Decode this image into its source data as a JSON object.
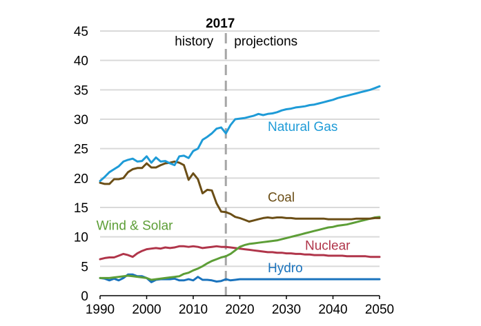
{
  "chart_data": {
    "type": "line",
    "title": "",
    "xlabel": "",
    "ylabel": "",
    "xlim": [
      1990,
      2050
    ],
    "ylim": [
      0,
      45
    ],
    "grid": true,
    "legend": "inline labels",
    "x_ticks": [
      1990,
      2000,
      2010,
      2020,
      2030,
      2040,
      2050
    ],
    "x_tick_labels": [
      "1990",
      "2000",
      "2010",
      "2020",
      "2030",
      "2040",
      "2050"
    ],
    "y_ticks": [
      0,
      5,
      10,
      15,
      20,
      25,
      30,
      35,
      40,
      45
    ],
    "y_tick_labels": [
      "0",
      "5",
      "10",
      "15",
      "20",
      "25",
      "30",
      "35",
      "40",
      "45"
    ],
    "divider": {
      "year": 2017,
      "label": "2017",
      "left_label": "history",
      "right_label": "projections",
      "color": "#a6a6a6"
    },
    "x": [
      1990,
      1991,
      1992,
      1993,
      1994,
      1995,
      1996,
      1997,
      1998,
      1999,
      2000,
      2001,
      2002,
      2003,
      2004,
      2005,
      2006,
      2007,
      2008,
      2009,
      2010,
      2011,
      2012,
      2013,
      2014,
      2015,
      2016,
      2017,
      2018,
      2019,
      2020,
      2021,
      2022,
      2023,
      2024,
      2025,
      2026,
      2027,
      2028,
      2029,
      2030,
      2031,
      2032,
      2033,
      2034,
      2035,
      2036,
      2037,
      2038,
      2039,
      2040,
      2041,
      2042,
      2043,
      2044,
      2045,
      2046,
      2047,
      2048,
      2049,
      2050
    ],
    "series": [
      {
        "name": "Natural Gas",
        "label": "Natural Gas",
        "color": "#1e9bd7",
        "values": [
          19.5,
          20.2,
          21.0,
          21.5,
          22.0,
          22.8,
          23.1,
          23.3,
          22.8,
          22.9,
          23.7,
          22.6,
          23.5,
          22.8,
          22.9,
          22.5,
          22.2,
          23.7,
          23.8,
          23.4,
          24.6,
          25.0,
          26.5,
          27.0,
          27.6,
          28.4,
          28.6,
          27.6,
          29.0,
          30.0,
          30.1,
          30.2,
          30.4,
          30.6,
          30.9,
          30.7,
          30.9,
          31.0,
          31.2,
          31.5,
          31.7,
          31.8,
          32.0,
          32.1,
          32.2,
          32.4,
          32.5,
          32.7,
          32.9,
          33.1,
          33.3,
          33.6,
          33.8,
          34.0,
          34.2,
          34.4,
          34.6,
          34.8,
          35.0,
          35.3,
          35.6
        ]
      },
      {
        "name": "Coal",
        "label": "Coal",
        "color": "#6b4e16",
        "values": [
          19.2,
          19.0,
          19.0,
          19.8,
          19.8,
          20.0,
          21.0,
          21.5,
          21.7,
          21.7,
          22.5,
          21.8,
          21.8,
          22.2,
          22.5,
          22.6,
          22.8,
          22.6,
          22.2,
          19.7,
          20.8,
          19.8,
          17.4,
          18.0,
          17.9,
          15.7,
          14.3,
          14.2,
          13.9,
          13.4,
          13.2,
          12.9,
          12.6,
          12.8,
          13.0,
          13.2,
          13.3,
          13.2,
          13.3,
          13.3,
          13.2,
          13.2,
          13.1,
          13.1,
          13.1,
          13.1,
          13.1,
          13.1,
          13.1,
          13.0,
          13.0,
          13.0,
          13.0,
          13.0,
          13.0,
          13.1,
          13.1,
          13.1,
          13.1,
          13.2,
          13.2
        ]
      },
      {
        "name": "Wind & Solar",
        "label": "Wind & Solar",
        "color": "#5d9e37",
        "values": [
          3.0,
          3.0,
          3.0,
          3.1,
          3.2,
          3.3,
          3.4,
          3.3,
          3.2,
          3.1,
          3.0,
          2.7,
          2.8,
          2.9,
          3.0,
          3.1,
          3.2,
          3.3,
          3.7,
          3.9,
          4.3,
          4.6,
          5.0,
          5.5,
          5.9,
          6.2,
          6.5,
          6.7,
          7.1,
          7.7,
          8.3,
          8.6,
          8.8,
          8.9,
          9.0,
          9.1,
          9.2,
          9.3,
          9.4,
          9.6,
          9.8,
          10.0,
          10.2,
          10.4,
          10.6,
          10.8,
          11.0,
          11.2,
          11.4,
          11.6,
          11.7,
          11.9,
          12.0,
          12.1,
          12.3,
          12.5,
          12.7,
          12.9,
          13.1,
          13.3,
          13.4
        ]
      },
      {
        "name": "Nuclear",
        "label": "Nuclear",
        "color": "#b0354a",
        "values": [
          6.2,
          6.4,
          6.5,
          6.5,
          6.8,
          7.1,
          6.9,
          6.6,
          7.2,
          7.6,
          7.9,
          8.0,
          8.1,
          8.0,
          8.2,
          8.1,
          8.2,
          8.4,
          8.4,
          8.3,
          8.4,
          8.3,
          8.1,
          8.2,
          8.3,
          8.4,
          8.3,
          8.3,
          8.2,
          8.1,
          8.0,
          7.9,
          7.8,
          7.7,
          7.6,
          7.5,
          7.4,
          7.4,
          7.3,
          7.3,
          7.2,
          7.2,
          7.1,
          7.1,
          7.0,
          7.0,
          6.9,
          6.9,
          6.9,
          6.8,
          6.8,
          6.8,
          6.8,
          6.7,
          6.7,
          6.7,
          6.7,
          6.7,
          6.6,
          6.6,
          6.6
        ]
      },
      {
        "name": "Hydro",
        "label": "Hydro",
        "color": "#1a73bd",
        "values": [
          3.0,
          2.9,
          2.6,
          2.9,
          2.6,
          3.0,
          3.6,
          3.6,
          3.3,
          3.3,
          3.0,
          2.3,
          2.7,
          2.8,
          2.8,
          2.8,
          2.9,
          2.6,
          2.6,
          2.8,
          2.6,
          3.2,
          2.7,
          2.7,
          2.6,
          2.4,
          2.5,
          2.8,
          2.6,
          2.7,
          2.8,
          2.8,
          2.8,
          2.8,
          2.8,
          2.8,
          2.8,
          2.8,
          2.8,
          2.8,
          2.8,
          2.8,
          2.8,
          2.8,
          2.8,
          2.8,
          2.8,
          2.8,
          2.8,
          2.8,
          2.8,
          2.8,
          2.8,
          2.8,
          2.8,
          2.8,
          2.8,
          2.8,
          2.8,
          2.8,
          2.8
        ]
      }
    ],
    "label_positions": [
      {
        "series": "Natural Gas",
        "x": 2026,
        "y": 28.0
      },
      {
        "series": "Coal",
        "x": 2026,
        "y": 16.0
      },
      {
        "series": "Wind & Solar",
        "x": 1989.2,
        "y": 11.2
      },
      {
        "series": "Nuclear",
        "x": 2034,
        "y": 7.8
      },
      {
        "series": "Hydro",
        "x": 2026,
        "y": 4.0
      }
    ]
  }
}
